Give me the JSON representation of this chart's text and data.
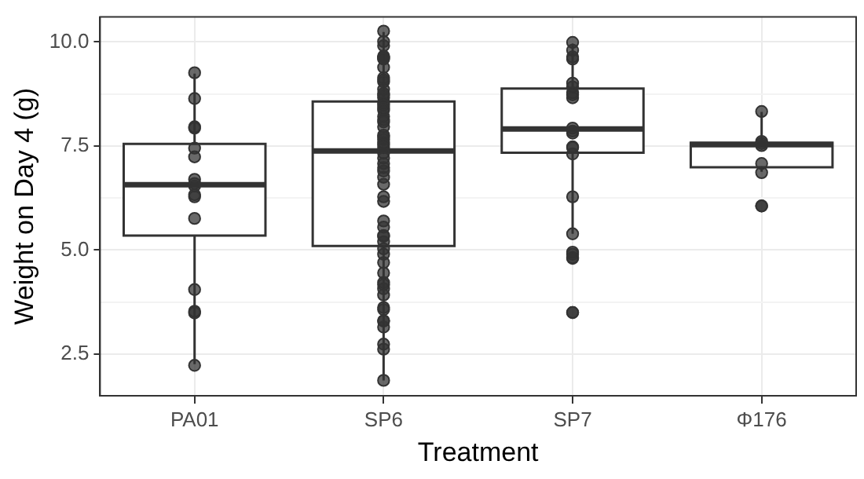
{
  "chart_data": {
    "type": "box",
    "xlabel": "Treatment",
    "ylabel": "Weight on Day 4 (g)",
    "categories": [
      "PA01",
      "SP6",
      "SP7",
      "Φ176"
    ],
    "boxes": [
      {
        "low": 2.26,
        "q1": 5.35,
        "median": 6.57,
        "q3": 7.55,
        "high": 9.24
      },
      {
        "low": 1.87,
        "q1": 5.1,
        "median": 7.38,
        "q3": 8.57,
        "high": 10.24
      },
      {
        "low": 5.39,
        "q1": 7.34,
        "median": 7.91,
        "q3": 8.88,
        "high": 9.96
      },
      {
        "low": 6.88,
        "q1": 6.99,
        "median": 7.53,
        "q3": 7.58,
        "high": 8.32
      }
    ],
    "series": [
      {
        "type": "scatter",
        "color": "#333333",
        "x": [
          "PA01",
          "PA01",
          "PA01",
          "PA01",
          "PA01",
          "PA01",
          "PA01",
          "PA01",
          "PA01",
          "PA01",
          "PA01",
          "PA01",
          "PA01",
          "PA01",
          "PA01",
          "PA01",
          "SP6",
          "SP6",
          "SP6",
          "SP6",
          "SP6",
          "SP6",
          "SP6",
          "SP6",
          "SP6",
          "SP6",
          "SP6",
          "SP6",
          "SP6",
          "SP6",
          "SP6",
          "SP6",
          "SP6",
          "SP6",
          "SP6",
          "SP6",
          "SP6",
          "SP6",
          "SP6",
          "SP6",
          "SP6",
          "SP6",
          "SP6",
          "SP6",
          "SP6",
          "SP6",
          "SP6",
          "SP6",
          "SP6",
          "SP6",
          "SP6",
          "SP6",
          "SP6",
          "SP6",
          "SP6",
          "SP6",
          "SP6",
          "SP6",
          "SP6",
          "SP6",
          "SP6",
          "SP6",
          "SP6",
          "SP6",
          "SP6",
          "SP6",
          "SP6",
          "SP6",
          "SP6",
          "SP6",
          "SP6",
          "SP6",
          "SP6",
          "SP6",
          "SP6",
          "SP7",
          "SP7",
          "SP7",
          "SP7",
          "SP7",
          "SP7",
          "SP7",
          "SP7",
          "SP7",
          "SP7",
          "SP7",
          "SP7",
          "SP7",
          "SP7",
          "SP7",
          "SP7",
          "SP7",
          "SP7",
          "SP7",
          "SP7",
          "SP7",
          "SP7",
          "SP7",
          "Φ176",
          "Φ176",
          "Φ176",
          "Φ176",
          "Φ176",
          "Φ176",
          "Φ176",
          "Φ176"
        ],
        "values": [
          9.26,
          8.64,
          7.96,
          7.93,
          7.45,
          7.24,
          6.7,
          6.6,
          6.54,
          6.33,
          6.28,
          5.76,
          4.05,
          3.53,
          3.49,
          2.23,
          10.26,
          10.01,
          9.91,
          9.66,
          9.64,
          9.61,
          9.59,
          9.39,
          9.14,
          9.09,
          9.04,
          8.86,
          8.76,
          8.71,
          8.66,
          8.53,
          8.48,
          8.41,
          8.36,
          8.21,
          8.13,
          8.08,
          7.96,
          7.76,
          7.71,
          7.66,
          7.58,
          7.53,
          7.46,
          7.33,
          7.21,
          7.08,
          6.98,
          6.9,
          6.75,
          6.58,
          6.28,
          6.17,
          5.7,
          5.55,
          5.35,
          5.33,
          5.2,
          5.03,
          4.9,
          4.7,
          4.45,
          4.22,
          4.17,
          4.07,
          3.92,
          3.62,
          3.57,
          3.3,
          3.3,
          3.15,
          2.74,
          2.62,
          1.87,
          9.99,
          9.8,
          9.64,
          9.59,
          9.01,
          8.92,
          8.78,
          8.73,
          8.66,
          7.93,
          7.86,
          7.81,
          7.48,
          7.46,
          7.31,
          6.28,
          5.39,
          4.95,
          4.9,
          4.82,
          4.8,
          3.5,
          3.5,
          8.33,
          7.61,
          7.56,
          7.51,
          7.08,
          6.86,
          6.06,
          6.06
        ]
      }
    ],
    "ylim": [
      1.5,
      10.6
    ],
    "yticks": [
      {
        "value": 2.5,
        "label": "2.5"
      },
      {
        "value": 3.75,
        "label": null
      },
      {
        "value": 5,
        "label": "5.0"
      },
      {
        "value": 6.25,
        "label": null
      },
      {
        "value": 7.5,
        "label": "7.5"
      },
      {
        "value": 8.75,
        "label": null
      },
      {
        "value": 10,
        "label": "10.0"
      }
    ],
    "grid": true,
    "legend": false,
    "marker": "circle"
  }
}
